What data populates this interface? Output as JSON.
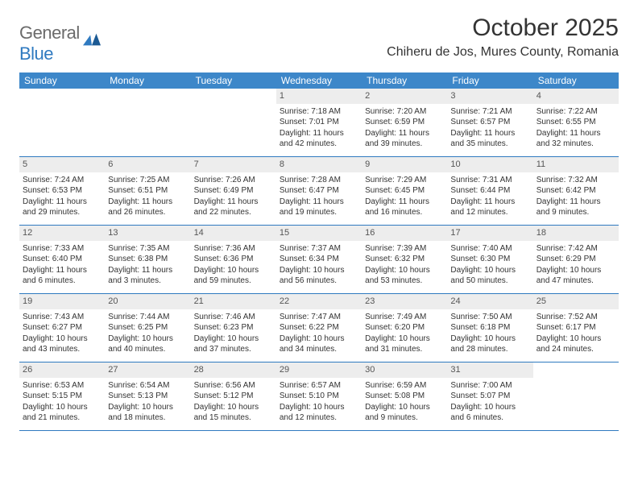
{
  "logo": {
    "text1": "General",
    "text2": "Blue"
  },
  "title": "October 2025",
  "location": "Chiheru de Jos, Mures County, Romania",
  "colors": {
    "header_bg": "#3d87c9",
    "header_text": "#ffffff",
    "rule": "#2f7ac0",
    "daynum_bg": "#ededed",
    "logo_gray": "#6b6b6b",
    "logo_blue": "#2f7ac0"
  },
  "day_headers": [
    "Sunday",
    "Monday",
    "Tuesday",
    "Wednesday",
    "Thursday",
    "Friday",
    "Saturday"
  ],
  "weeks": [
    [
      {
        "empty": true
      },
      {
        "empty": true
      },
      {
        "empty": true
      },
      {
        "num": "1",
        "sunrise": "Sunrise: 7:18 AM",
        "sunset": "Sunset: 7:01 PM",
        "d1": "Daylight: 11 hours",
        "d2": "and 42 minutes."
      },
      {
        "num": "2",
        "sunrise": "Sunrise: 7:20 AM",
        "sunset": "Sunset: 6:59 PM",
        "d1": "Daylight: 11 hours",
        "d2": "and 39 minutes."
      },
      {
        "num": "3",
        "sunrise": "Sunrise: 7:21 AM",
        "sunset": "Sunset: 6:57 PM",
        "d1": "Daylight: 11 hours",
        "d2": "and 35 minutes."
      },
      {
        "num": "4",
        "sunrise": "Sunrise: 7:22 AM",
        "sunset": "Sunset: 6:55 PM",
        "d1": "Daylight: 11 hours",
        "d2": "and 32 minutes."
      }
    ],
    [
      {
        "num": "5",
        "sunrise": "Sunrise: 7:24 AM",
        "sunset": "Sunset: 6:53 PM",
        "d1": "Daylight: 11 hours",
        "d2": "and 29 minutes."
      },
      {
        "num": "6",
        "sunrise": "Sunrise: 7:25 AM",
        "sunset": "Sunset: 6:51 PM",
        "d1": "Daylight: 11 hours",
        "d2": "and 26 minutes."
      },
      {
        "num": "7",
        "sunrise": "Sunrise: 7:26 AM",
        "sunset": "Sunset: 6:49 PM",
        "d1": "Daylight: 11 hours",
        "d2": "and 22 minutes."
      },
      {
        "num": "8",
        "sunrise": "Sunrise: 7:28 AM",
        "sunset": "Sunset: 6:47 PM",
        "d1": "Daylight: 11 hours",
        "d2": "and 19 minutes."
      },
      {
        "num": "9",
        "sunrise": "Sunrise: 7:29 AM",
        "sunset": "Sunset: 6:45 PM",
        "d1": "Daylight: 11 hours",
        "d2": "and 16 minutes."
      },
      {
        "num": "10",
        "sunrise": "Sunrise: 7:31 AM",
        "sunset": "Sunset: 6:44 PM",
        "d1": "Daylight: 11 hours",
        "d2": "and 12 minutes."
      },
      {
        "num": "11",
        "sunrise": "Sunrise: 7:32 AM",
        "sunset": "Sunset: 6:42 PM",
        "d1": "Daylight: 11 hours",
        "d2": "and 9 minutes."
      }
    ],
    [
      {
        "num": "12",
        "sunrise": "Sunrise: 7:33 AM",
        "sunset": "Sunset: 6:40 PM",
        "d1": "Daylight: 11 hours",
        "d2": "and 6 minutes."
      },
      {
        "num": "13",
        "sunrise": "Sunrise: 7:35 AM",
        "sunset": "Sunset: 6:38 PM",
        "d1": "Daylight: 11 hours",
        "d2": "and 3 minutes."
      },
      {
        "num": "14",
        "sunrise": "Sunrise: 7:36 AM",
        "sunset": "Sunset: 6:36 PM",
        "d1": "Daylight: 10 hours",
        "d2": "and 59 minutes."
      },
      {
        "num": "15",
        "sunrise": "Sunrise: 7:37 AM",
        "sunset": "Sunset: 6:34 PM",
        "d1": "Daylight: 10 hours",
        "d2": "and 56 minutes."
      },
      {
        "num": "16",
        "sunrise": "Sunrise: 7:39 AM",
        "sunset": "Sunset: 6:32 PM",
        "d1": "Daylight: 10 hours",
        "d2": "and 53 minutes."
      },
      {
        "num": "17",
        "sunrise": "Sunrise: 7:40 AM",
        "sunset": "Sunset: 6:30 PM",
        "d1": "Daylight: 10 hours",
        "d2": "and 50 minutes."
      },
      {
        "num": "18",
        "sunrise": "Sunrise: 7:42 AM",
        "sunset": "Sunset: 6:29 PM",
        "d1": "Daylight: 10 hours",
        "d2": "and 47 minutes."
      }
    ],
    [
      {
        "num": "19",
        "sunrise": "Sunrise: 7:43 AM",
        "sunset": "Sunset: 6:27 PM",
        "d1": "Daylight: 10 hours",
        "d2": "and 43 minutes."
      },
      {
        "num": "20",
        "sunrise": "Sunrise: 7:44 AM",
        "sunset": "Sunset: 6:25 PM",
        "d1": "Daylight: 10 hours",
        "d2": "and 40 minutes."
      },
      {
        "num": "21",
        "sunrise": "Sunrise: 7:46 AM",
        "sunset": "Sunset: 6:23 PM",
        "d1": "Daylight: 10 hours",
        "d2": "and 37 minutes."
      },
      {
        "num": "22",
        "sunrise": "Sunrise: 7:47 AM",
        "sunset": "Sunset: 6:22 PM",
        "d1": "Daylight: 10 hours",
        "d2": "and 34 minutes."
      },
      {
        "num": "23",
        "sunrise": "Sunrise: 7:49 AM",
        "sunset": "Sunset: 6:20 PM",
        "d1": "Daylight: 10 hours",
        "d2": "and 31 minutes."
      },
      {
        "num": "24",
        "sunrise": "Sunrise: 7:50 AM",
        "sunset": "Sunset: 6:18 PM",
        "d1": "Daylight: 10 hours",
        "d2": "and 28 minutes."
      },
      {
        "num": "25",
        "sunrise": "Sunrise: 7:52 AM",
        "sunset": "Sunset: 6:17 PM",
        "d1": "Daylight: 10 hours",
        "d2": "and 24 minutes."
      }
    ],
    [
      {
        "num": "26",
        "sunrise": "Sunrise: 6:53 AM",
        "sunset": "Sunset: 5:15 PM",
        "d1": "Daylight: 10 hours",
        "d2": "and 21 minutes."
      },
      {
        "num": "27",
        "sunrise": "Sunrise: 6:54 AM",
        "sunset": "Sunset: 5:13 PM",
        "d1": "Daylight: 10 hours",
        "d2": "and 18 minutes."
      },
      {
        "num": "28",
        "sunrise": "Sunrise: 6:56 AM",
        "sunset": "Sunset: 5:12 PM",
        "d1": "Daylight: 10 hours",
        "d2": "and 15 minutes."
      },
      {
        "num": "29",
        "sunrise": "Sunrise: 6:57 AM",
        "sunset": "Sunset: 5:10 PM",
        "d1": "Daylight: 10 hours",
        "d2": "and 12 minutes."
      },
      {
        "num": "30",
        "sunrise": "Sunrise: 6:59 AM",
        "sunset": "Sunset: 5:08 PM",
        "d1": "Daylight: 10 hours",
        "d2": "and 9 minutes."
      },
      {
        "num": "31",
        "sunrise": "Sunrise: 7:00 AM",
        "sunset": "Sunset: 5:07 PM",
        "d1": "Daylight: 10 hours",
        "d2": "and 6 minutes."
      },
      {
        "empty": true
      }
    ]
  ]
}
